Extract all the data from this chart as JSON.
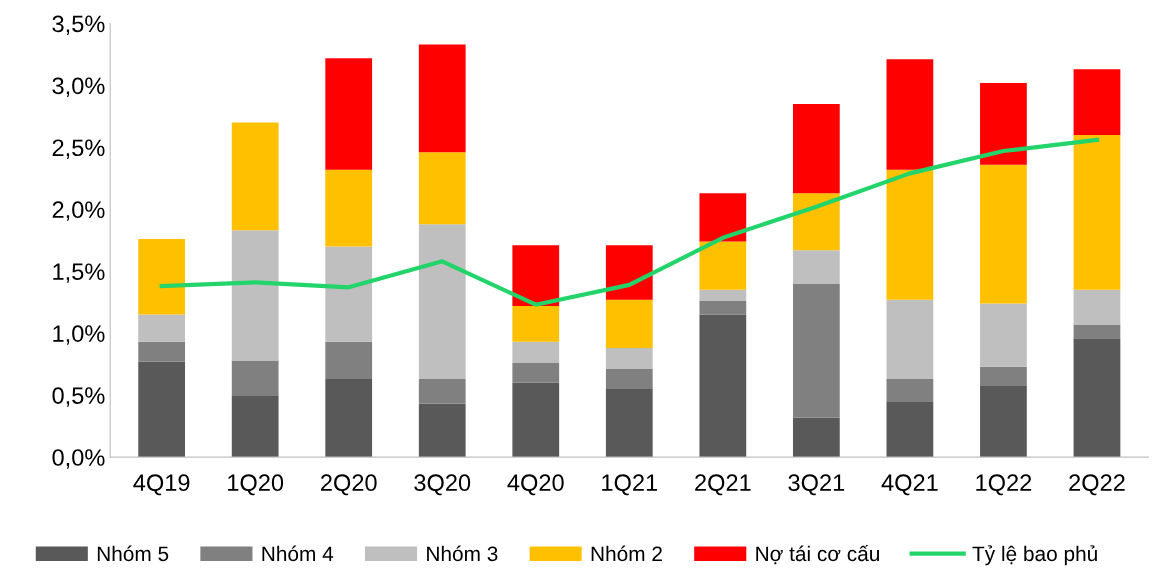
{
  "chart_data": {
    "type": "bar",
    "stacked": true,
    "categories": [
      "4Q19",
      "1Q20",
      "2Q20",
      "3Q20",
      "4Q20",
      "1Q21",
      "2Q21",
      "3Q21",
      "4Q21",
      "1Q22",
      "2Q22"
    ],
    "series": [
      {
        "name": "Nhóm 5",
        "color": "#595959",
        "values": [
          0.77,
          0.5,
          0.63,
          0.43,
          0.6,
          0.55,
          1.15,
          0.32,
          0.45,
          0.58,
          0.96
        ]
      },
      {
        "name": "Nhóm 4",
        "color": "#808080",
        "values": [
          0.16,
          0.28,
          0.3,
          0.2,
          0.16,
          0.16,
          0.11,
          1.08,
          0.18,
          0.15,
          0.11
        ]
      },
      {
        "name": "Nhóm 3",
        "color": "#bfbfbf",
        "values": [
          0.22,
          1.05,
          0.77,
          1.25,
          0.17,
          0.17,
          0.09,
          0.27,
          0.64,
          0.51,
          0.28
        ]
      },
      {
        "name": "Nhóm 2",
        "color": "#ffc000",
        "values": [
          0.61,
          0.87,
          0.62,
          0.58,
          0.29,
          0.39,
          0.39,
          0.46,
          1.05,
          1.12,
          1.25
        ]
      },
      {
        "name": "Nợ tái cơ cấu",
        "color": "#ff0000",
        "values": [
          0,
          0,
          0.9,
          0.87,
          0.49,
          0.44,
          0.39,
          0.72,
          0.89,
          0.66,
          0.53
        ]
      },
      {
        "name": "Tỷ lệ bao phủ",
        "type": "line",
        "color": "#22d46a",
        "values": [
          1.38,
          1.41,
          1.37,
          1.58,
          1.23,
          1.39,
          1.77,
          2.02,
          2.29,
          2.47,
          2.56
        ]
      }
    ],
    "ylim": [
      0,
      3.5
    ],
    "yticks": [
      {
        "value": 0,
        "label": "0,0%"
      },
      {
        "value": 0.5,
        "label": "0,5%"
      },
      {
        "value": 1,
        "label": "1,0%"
      },
      {
        "value": 1.5,
        "label": "1,5%"
      },
      {
        "value": 2,
        "label": "2,0%"
      },
      {
        "value": 2.5,
        "label": "2,5%"
      },
      {
        "value": 3,
        "label": "3,0%"
      },
      {
        "value": 3.5,
        "label": "3,5%"
      }
    ],
    "grid": false,
    "legend": "bottom",
    "marker": "none",
    "line_style": "solid"
  }
}
